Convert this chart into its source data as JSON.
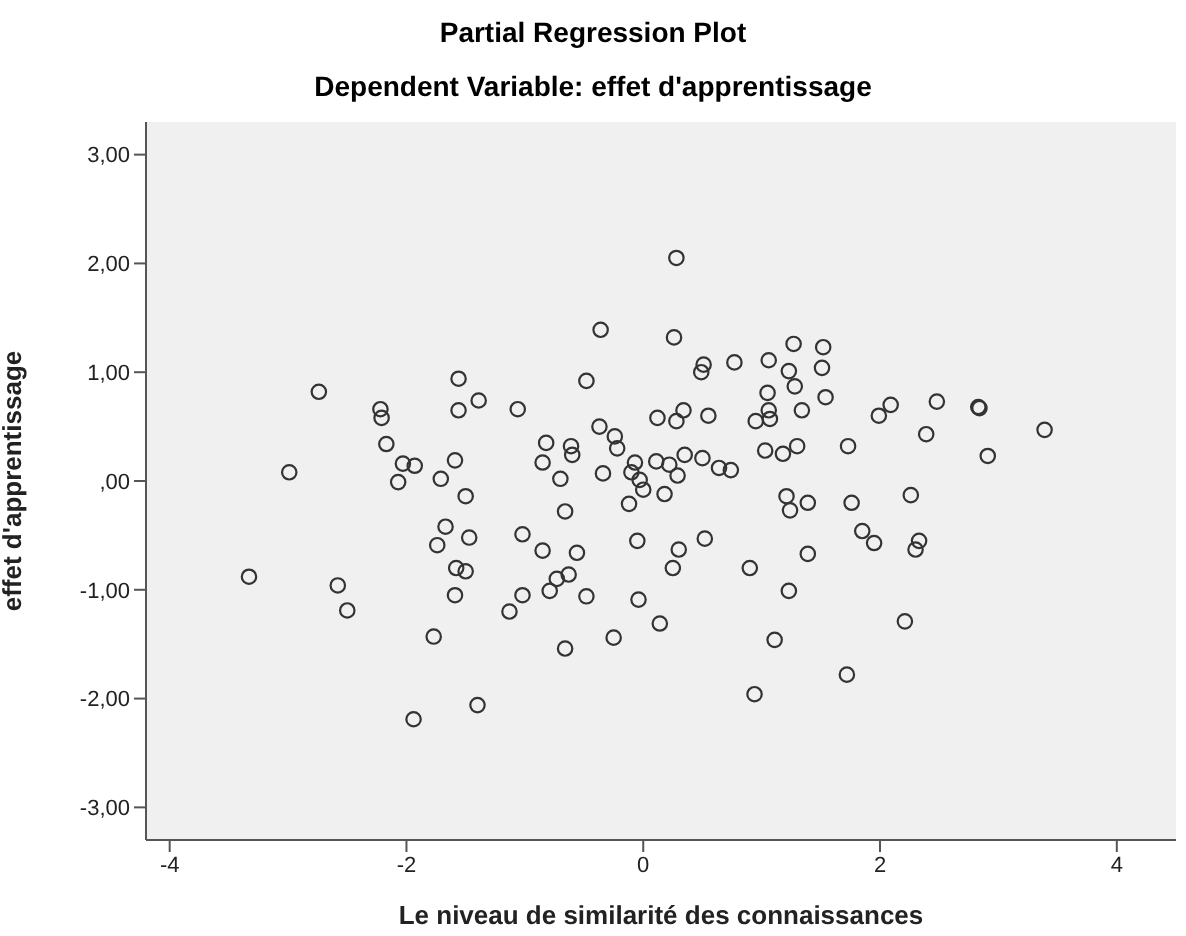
{
  "chart_data": {
    "type": "scatter",
    "title": "Partial Regression Plot",
    "subtitle": "Dependent Variable: effet d'apprentissage",
    "xlabel": "Le niveau de similarité des connaissances",
    "ylabel": "effet d'apprentissage",
    "marker": "circle",
    "grid": false,
    "legend": false,
    "xlim": [
      -4.2,
      4.5
    ],
    "xticks": [
      -4,
      -2,
      0,
      2,
      4
    ],
    "ylim": [
      -3.3,
      3.3
    ],
    "yticks": [
      {
        "value": -3,
        "label": "-3,00"
      },
      {
        "value": -2,
        "label": "-2,00"
      },
      {
        "value": -1,
        "label": "-1,00"
      },
      {
        "value": 0,
        "label": ",00"
      },
      {
        "value": 1,
        "label": "1,00"
      },
      {
        "value": 2,
        "label": "2,00"
      },
      {
        "value": 3,
        "label": "3,00"
      }
    ],
    "series": [
      {
        "color": "#333333",
        "x": [
          -1.56,
          -0.48,
          -2.22,
          -2.21,
          -1.56,
          -1.39,
          -1.06,
          -2.17,
          -2.03,
          -1.93,
          -2.07,
          -1.59,
          -1.71,
          -1.5,
          -1.67,
          -1.74,
          -1.47,
          -1.58,
          -1.5,
          -1.59,
          -1.77,
          -1.02,
          -0.85,
          -0.56,
          -0.73,
          -0.63,
          -0.79,
          -1.02,
          -1.13,
          -0.48,
          -0.66,
          -0.25,
          -0.04,
          0.14,
          -0.05,
          -0.82,
          -0.85,
          -0.61,
          -0.6,
          -0.7,
          -0.66,
          -0.37,
          -0.24,
          -0.22,
          -0.34,
          -0.07,
          -0.1,
          -0.03,
          0.0,
          -0.12,
          0.11,
          0.22,
          0.29,
          0.35,
          0.18,
          0.5,
          0.64,
          0.74,
          0.12,
          0.28,
          0.34,
          0.55,
          0.51,
          0.49,
          0.77,
          0.3,
          0.25,
          0.52,
          0.9,
          1.06,
          1.27,
          1.52,
          1.23,
          1.28,
          1.51,
          1.54,
          1.05,
          1.06,
          1.07,
          0.95,
          1.34,
          1.03,
          1.18,
          1.3,
          1.73,
          1.21,
          1.24,
          1.39,
          1.76,
          1.85,
          1.95,
          1.39,
          1.23,
          1.11,
          1.72,
          1.99,
          -0.36,
          -2.74,
          -2.99,
          0.28,
          0.26,
          2.09,
          2.48,
          2.83,
          2.84,
          2.39,
          2.91,
          3.39,
          2.26,
          2.33,
          2.3,
          2.21,
          0.94,
          -3.33,
          -2.58,
          -2.5,
          -1.94,
          -1.4
        ],
        "values": [
          0.94,
          0.92,
          0.66,
          0.58,
          0.65,
          0.74,
          0.66,
          0.34,
          0.16,
          0.14,
          -0.01,
          0.19,
          0.02,
          -0.14,
          -0.42,
          -0.59,
          -0.52,
          -0.8,
          -0.83,
          -1.05,
          -1.43,
          -0.49,
          -0.64,
          -0.66,
          -0.9,
          -0.86,
          -1.01,
          -1.05,
          -1.2,
          -1.06,
          -1.54,
          -1.44,
          -1.09,
          -1.31,
          -0.55,
          0.35,
          0.17,
          0.32,
          0.24,
          0.02,
          -0.28,
          0.5,
          0.41,
          0.3,
          0.07,
          0.17,
          0.08,
          0.01,
          -0.08,
          -0.21,
          0.18,
          0.15,
          0.05,
          0.24,
          -0.12,
          0.21,
          0.12,
          0.1,
          0.58,
          0.55,
          0.65,
          0.6,
          1.07,
          1.0,
          1.09,
          -0.63,
          -0.8,
          -0.53,
          -0.8,
          1.11,
          1.26,
          1.23,
          1.01,
          0.87,
          1.04,
          0.77,
          0.81,
          0.65,
          0.57,
          0.55,
          0.65,
          0.28,
          0.25,
          0.32,
          0.32,
          -0.14,
          -0.27,
          -0.2,
          -0.2,
          -0.46,
          -0.57,
          -0.67,
          -1.01,
          -1.46,
          -1.78,
          0.6,
          1.39,
          0.82,
          0.08,
          2.05,
          1.32,
          0.7,
          0.73,
          0.68,
          0.67,
          0.43,
          0.23,
          0.47,
          -0.13,
          -0.55,
          -0.63,
          -1.29,
          -1.96,
          -0.88,
          -0.96,
          -1.19,
          -2.19,
          -2.06
        ]
      }
    ]
  }
}
